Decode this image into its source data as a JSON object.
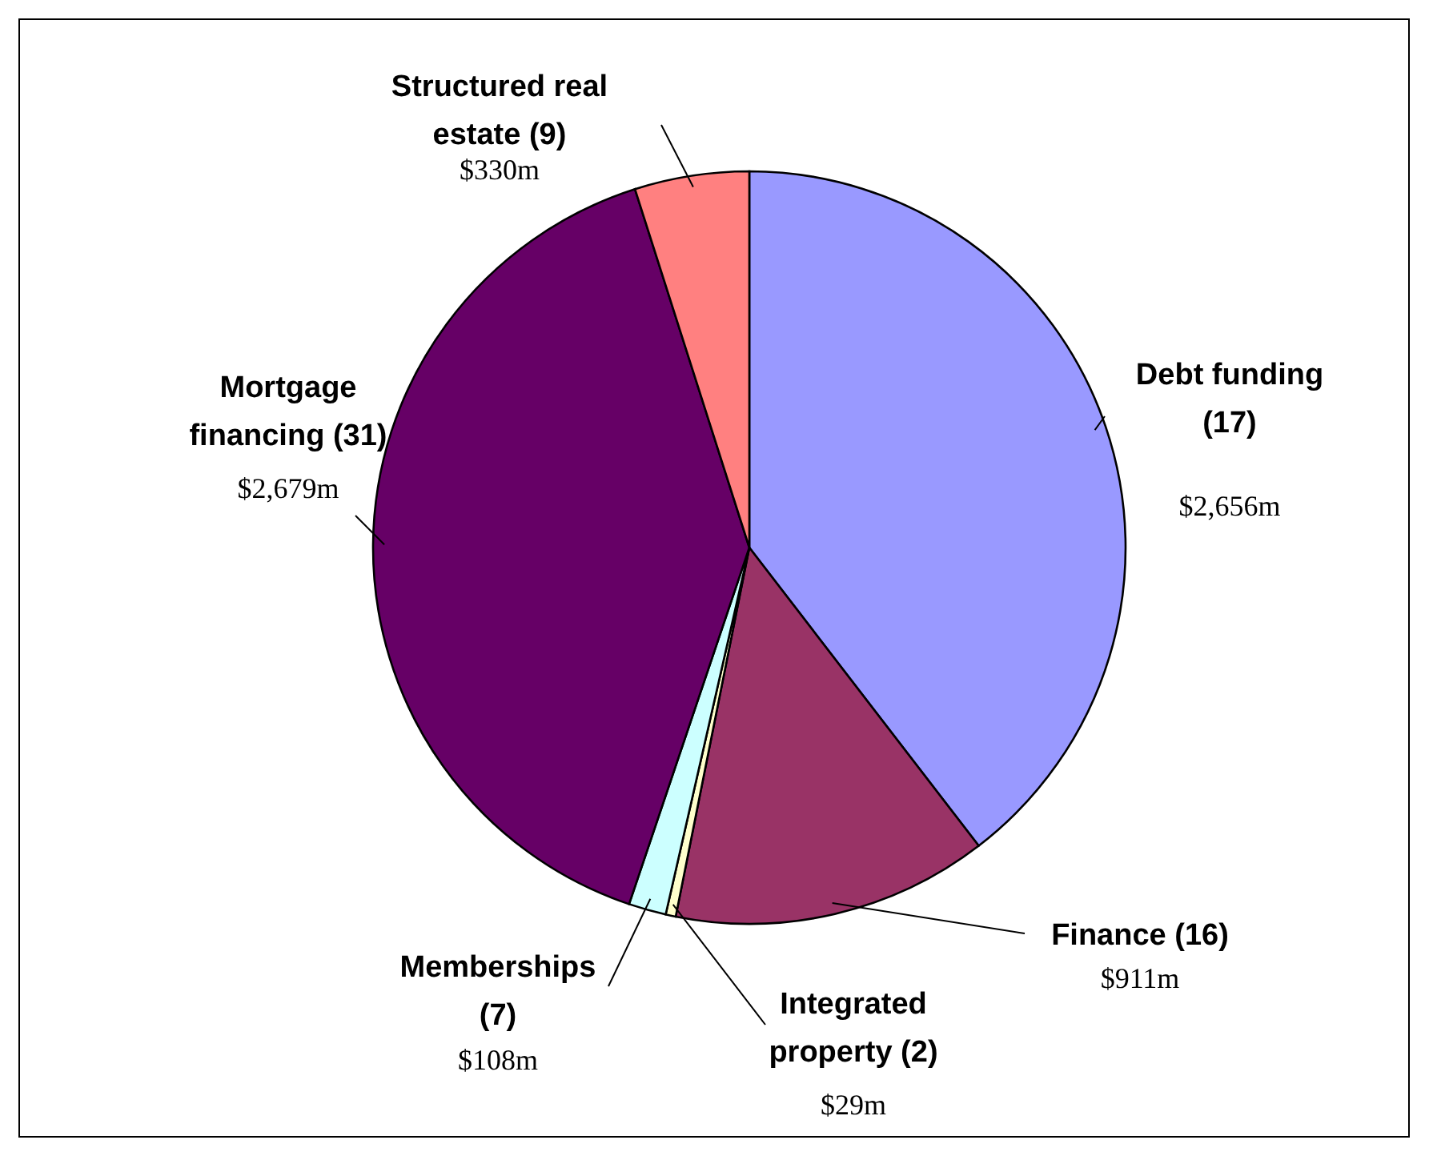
{
  "chart_data": {
    "type": "pie",
    "categories": [
      "Debt funding (17)",
      "Finance (16)",
      "Integrated property (2)",
      "Memberships (7)",
      "Mortgage financing (31)",
      "Structured real estate (9)"
    ],
    "values": [
      2656,
      911,
      29,
      108,
      2679,
      330
    ],
    "value_labels": [
      "$2,656m",
      "$911m",
      "$29m",
      "$108m",
      "$2,679m",
      "$330m"
    ],
    "colors": [
      "#9999ff",
      "#993366",
      "#ffffcc",
      "#ccffff",
      "#660066",
      "#ff8080"
    ]
  }
}
